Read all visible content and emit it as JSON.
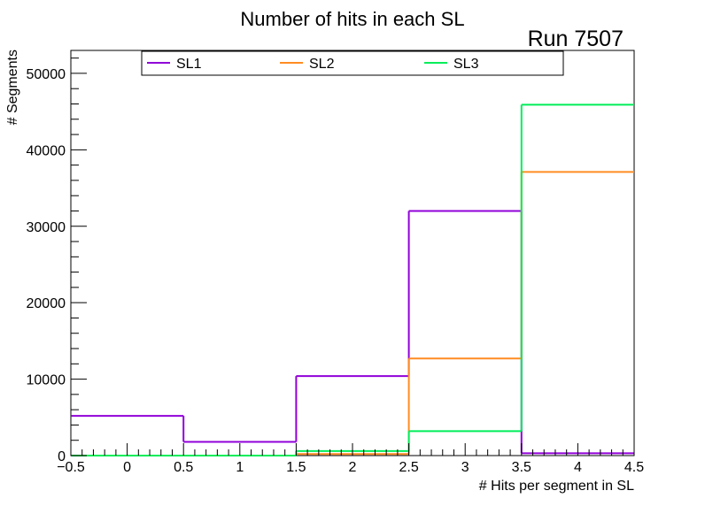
{
  "chart_data": {
    "type": "histogram-step",
    "title": "Number of hits in each SL",
    "annotation": "Run 7507",
    "xlabel": "# Hits per segment in SL",
    "ylabel": "# Segments",
    "xlim": [
      -0.5,
      4.5
    ],
    "ylim": [
      0,
      53000
    ],
    "x_ticks": [
      -0.5,
      0,
      0.5,
      1,
      1.5,
      2,
      2.5,
      3,
      3.5,
      4,
      4.5
    ],
    "x_tick_labels": [
      "−0.5",
      "0",
      "0.5",
      "1",
      "1.5",
      "2",
      "2.5",
      "3",
      "3.5",
      "4",
      "4.5"
    ],
    "y_ticks": [
      0,
      10000,
      20000,
      30000,
      40000,
      50000
    ],
    "y_tick_labels": [
      "0",
      "10000",
      "20000",
      "30000",
      "40000",
      "50000"
    ],
    "bin_edges": [
      -0.5,
      0.5,
      1.5,
      2.5,
      3.5,
      4.5
    ],
    "bin_centers": [
      0,
      1,
      2,
      3,
      4
    ],
    "legend_position": "top",
    "series": [
      {
        "name": "SL1",
        "color": "#9000d8",
        "values": [
          5200,
          1800,
          10400,
          32000,
          300
        ]
      },
      {
        "name": "SL2",
        "color": "#ff8c22",
        "values": [
          0,
          0,
          200,
          12700,
          37100
        ]
      },
      {
        "name": "SL3",
        "color": "#00ee5a",
        "values": [
          0,
          0,
          600,
          3200,
          45900
        ]
      }
    ]
  }
}
